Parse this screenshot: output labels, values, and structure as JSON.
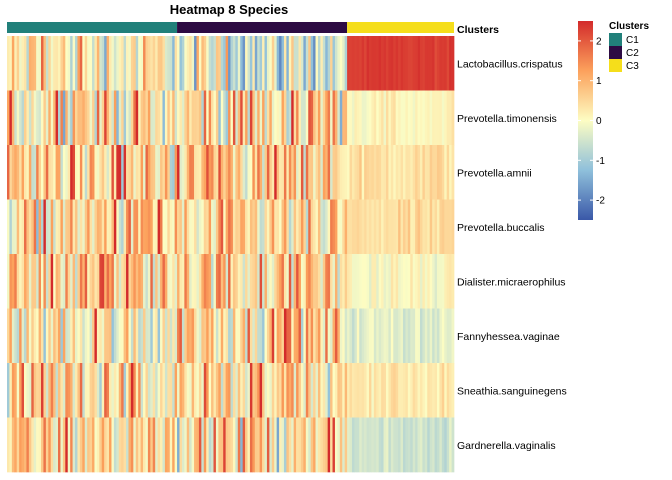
{
  "chart_data": {
    "type": "heatmap",
    "title": "Heatmap 8 Species",
    "rows": [
      "Lactobacillus.crispatus",
      "Prevotella.timonensis",
      "Prevotella.amnii",
      "Prevotella.buccalis",
      "Dialister.micraerophilus",
      "Fannyhessea.vaginae",
      "Sneathia.sanguinegens",
      "Gardnerella.vaginalis"
    ],
    "cluster_annotation": {
      "label": "Clusters",
      "groups": [
        {
          "name": "C1",
          "color": "#21807a",
          "count": 70
        },
        {
          "name": "C2",
          "color": "#2d0b43",
          "count": 70
        },
        {
          "name": "C3",
          "color": "#f5de1b",
          "count": 44
        }
      ]
    },
    "row_means_by_cluster": [
      {
        "row": "Lactobacillus.crispatus",
        "C1": 0.1,
        "C2": -0.5,
        "C3": 2.3
      },
      {
        "row": "Prevotella.timonensis",
        "C1": 0.3,
        "C2": 0.3,
        "C3": 0.1
      },
      {
        "row": "Prevotella.amnii",
        "C1": 0.4,
        "C2": 0.6,
        "C3": 0.4
      },
      {
        "row": "Prevotella.buccalis",
        "C1": 0.4,
        "C2": 0.2,
        "C3": 0.4
      },
      {
        "row": "Dialister.micraerophilus",
        "C1": 0.5,
        "C2": 0.6,
        "C3": 0.0
      },
      {
        "row": "Fannyhessea.vaginae",
        "C1": 0.1,
        "C2": 0.6,
        "C3": -0.3
      },
      {
        "row": "Sneathia.sanguinegens",
        "C1": 0.4,
        "C2": 0.3,
        "C3": 0.3
      },
      {
        "row": "Gardnerella.vaginalis",
        "C1": 0.4,
        "C2": 0.3,
        "C3": -0.5
      }
    ],
    "color_scale": {
      "title": "",
      "min": -2.5,
      "max": 2.5,
      "ticks": [
        -2,
        -1,
        0,
        1,
        2
      ],
      "stops": [
        "#3a58a8",
        "#8fc0db",
        "#fdfdc3",
        "#fca15c",
        "#d32b2b"
      ]
    },
    "legend": {
      "title": "Clusters",
      "items": [
        "C1",
        "C2",
        "C3"
      ],
      "placement": "right"
    }
  }
}
